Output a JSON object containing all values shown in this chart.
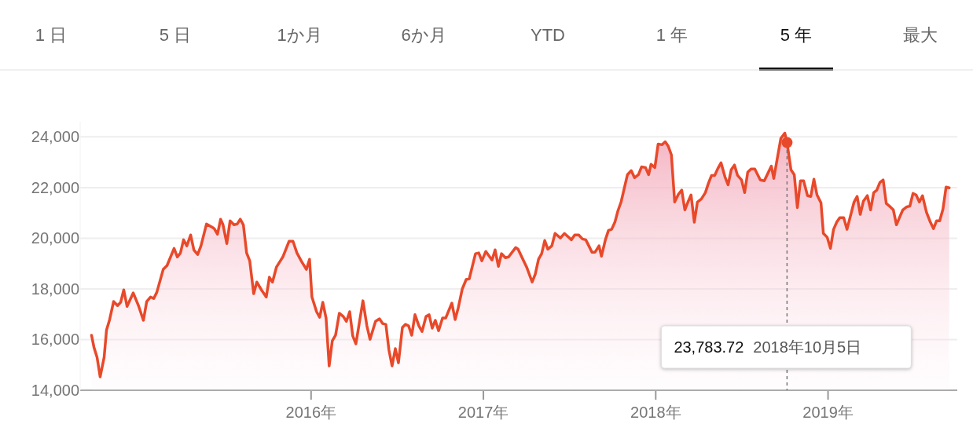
{
  "chart_data": {
    "type": "area",
    "annotations": [
      "1 日",
      "5 日",
      "1か月",
      "6か月",
      "YTD",
      "1 年",
      "5 年",
      "最大",
      "23,783.72  2018年10月5日"
    ],
    "x": [
      2014.726,
      2014.74,
      2014.758,
      2014.776,
      2014.799,
      2014.813,
      2014.831,
      2014.854,
      2014.877,
      2014.895,
      2014.913,
      2014.932,
      2014.968,
      2015.0,
      2015.027,
      2015.046,
      2015.068,
      2015.087,
      2015.105,
      2015.142,
      2015.164,
      2015.205,
      2015.224,
      2015.242,
      2015.26,
      2015.279,
      2015.301,
      2015.32,
      2015.342,
      2015.361,
      2015.393,
      2015.425,
      2015.438,
      2015.457,
      2015.475,
      2015.489,
      2015.511,
      2015.53,
      2015.553,
      2015.571,
      2015.589,
      2015.607,
      2015.626,
      2015.644,
      2015.667,
      2015.685,
      2015.712,
      2015.74,
      2015.758,
      2015.776,
      2015.799,
      2015.822,
      2015.836,
      2015.872,
      2015.895,
      2015.918,
      2015.945,
      2015.973,
      2015.991,
      2016.005,
      2016.032,
      2016.05,
      2016.068,
      2016.087,
      2016.105,
      2016.123,
      2016.142,
      2016.164,
      2016.187,
      2016.205,
      2016.224,
      2016.242,
      2016.26,
      2016.301,
      2016.324,
      2016.342,
      2016.374,
      2016.397,
      2016.416,
      2016.434,
      2016.452,
      2016.47,
      2016.489,
      2016.507,
      2016.53,
      2016.548,
      2016.566,
      2016.584,
      2016.603,
      2016.626,
      2016.644,
      2016.667,
      2016.685,
      2016.703,
      2016.721,
      2016.74,
      2016.763,
      2016.781,
      2016.817,
      2016.836,
      2016.854,
      2016.877,
      2016.9,
      2016.918,
      2016.954,
      2016.973,
      2016.991,
      2017.014,
      2017.05,
      2017.068,
      2017.087,
      2017.105,
      2017.128,
      2017.146,
      2017.187,
      2017.201,
      2017.251,
      2017.283,
      2017.301,
      2017.32,
      2017.338,
      2017.356,
      2017.374,
      2017.397,
      2017.416,
      2017.447,
      2017.47,
      2017.511,
      2017.53,
      2017.553,
      2017.575,
      2017.594,
      2017.612,
      2017.63,
      2017.648,
      2017.671,
      2017.685,
      2017.708,
      2017.726,
      2017.744,
      2017.763,
      2017.781,
      2017.799,
      2017.836,
      2017.858,
      2017.877,
      2017.9,
      2017.918,
      2017.941,
      2017.959,
      2017.973,
      2017.995,
      2018.014,
      2018.037,
      2018.055,
      2018.073,
      2018.091,
      2018.11,
      2018.132,
      2018.151,
      2018.169,
      2018.187,
      2018.205,
      2018.224,
      2018.242,
      2018.265,
      2018.288,
      2018.306,
      2018.324,
      2018.342,
      2018.361,
      2018.379,
      2018.402,
      2018.42,
      2018.438,
      2018.457,
      2018.475,
      2018.498,
      2018.516,
      2018.534,
      2018.553,
      2018.575,
      2018.607,
      2018.63,
      2018.671,
      2018.685,
      2018.726,
      2018.749,
      2018.762,
      2018.785,
      2018.804,
      2018.822,
      2018.84,
      2018.858,
      2018.881,
      2018.9,
      2018.918,
      2018.936,
      2018.959,
      2018.973,
      2018.995,
      2019.014,
      2019.032,
      2019.05,
      2019.068,
      2019.091,
      2019.11,
      2019.151,
      2019.169,
      2019.187,
      2019.205,
      2019.228,
      2019.247,
      2019.265,
      2019.283,
      2019.301,
      2019.32,
      2019.338,
      2019.361,
      2019.379,
      2019.397,
      2019.416,
      2019.434,
      2019.457,
      2019.475,
      2019.493,
      2019.511,
      2019.53,
      2019.548,
      2019.571,
      2019.594,
      2019.612,
      2019.63,
      2019.648,
      2019.667,
      2019.685,
      2019.703
    ],
    "series": [
      {
        "color": "#e8492a",
        "values": [
          16170,
          15700,
          15300,
          14530,
          15300,
          16380,
          16790,
          17500,
          17340,
          17470,
          17960,
          17310,
          17840,
          17310,
          16760,
          17500,
          17680,
          17620,
          17870,
          18770,
          18920,
          19600,
          19260,
          19420,
          19940,
          19700,
          20130,
          19540,
          19360,
          19700,
          20560,
          20440,
          20380,
          20160,
          20750,
          20530,
          19790,
          20690,
          20530,
          20560,
          20750,
          20530,
          19420,
          19110,
          17810,
          18270,
          17960,
          17680,
          18460,
          18270,
          18860,
          19110,
          19260,
          19880,
          19880,
          19420,
          19080,
          18770,
          19170,
          17680,
          17100,
          16880,
          17470,
          16850,
          14960,
          15950,
          16170,
          17040,
          16910,
          16720,
          17100,
          16140,
          15830,
          17530,
          16540,
          16010,
          16720,
          16820,
          16630,
          16600,
          15580,
          14960,
          15640,
          15080,
          16480,
          16600,
          16540,
          16170,
          16980,
          16540,
          16320,
          16910,
          16980,
          16450,
          16760,
          16350,
          16850,
          16850,
          17440,
          16790,
          17250,
          17990,
          18370,
          18400,
          19390,
          19420,
          19110,
          19480,
          19140,
          19540,
          18890,
          19390,
          19230,
          19260,
          19630,
          19570,
          18860,
          18270,
          18580,
          19170,
          19390,
          19910,
          19570,
          19700,
          20190,
          20010,
          20190,
          19940,
          20130,
          20130,
          19970,
          19940,
          19700,
          19450,
          19450,
          19700,
          19290,
          19940,
          20310,
          20350,
          20630,
          21090,
          21430,
          22510,
          22670,
          22390,
          22510,
          22820,
          22790,
          22510,
          22920,
          22790,
          23720,
          23690,
          23810,
          23630,
          23290,
          21430,
          21740,
          21900,
          21120,
          21430,
          21710,
          20630,
          21430,
          21550,
          21800,
          22170,
          22480,
          22480,
          22760,
          22980,
          22420,
          22110,
          22700,
          22890,
          22480,
          22300,
          21800,
          22610,
          22730,
          22730,
          22300,
          22270,
          22850,
          22360,
          23940,
          24150,
          23780,
          22700,
          22510,
          21210,
          22270,
          22270,
          21680,
          21650,
          22330,
          21710,
          21400,
          20190,
          20040,
          19600,
          20350,
          20630,
          20810,
          20810,
          20350,
          21430,
          21650,
          20940,
          21460,
          21680,
          21120,
          21800,
          21900,
          22200,
          22300,
          21370,
          21240,
          21120,
          20530,
          20840,
          21120,
          21240,
          21270,
          21770,
          21710,
          21430,
          21680,
          21030,
          20630,
          20380,
          20690,
          20690,
          21150,
          22020,
          21990
        ]
      }
    ],
    "xlim": [
      2014.66,
      2019.75
    ],
    "ylim": [
      14000,
      24600
    ],
    "xticks": [
      {
        "value": 2016,
        "label": "2016年"
      },
      {
        "value": 2017,
        "label": "2017年"
      },
      {
        "value": 2018,
        "label": "2018年"
      },
      {
        "value": 2019,
        "label": "2019年"
      }
    ],
    "yticks": [
      {
        "value": 14000,
        "label": "14,000"
      },
      {
        "value": 16000,
        "label": "16,000"
      },
      {
        "value": 18000,
        "label": "18,000"
      },
      {
        "value": 20000,
        "label": "20,000"
      },
      {
        "value": 22000,
        "label": "22,000"
      },
      {
        "value": 24000,
        "label": "24,000"
      }
    ],
    "grid": "y",
    "ref_lines": [
      {
        "axis": "x",
        "value": 2018.762,
        "color": "#777777",
        "line_style": "dashed"
      }
    ]
  }
}
